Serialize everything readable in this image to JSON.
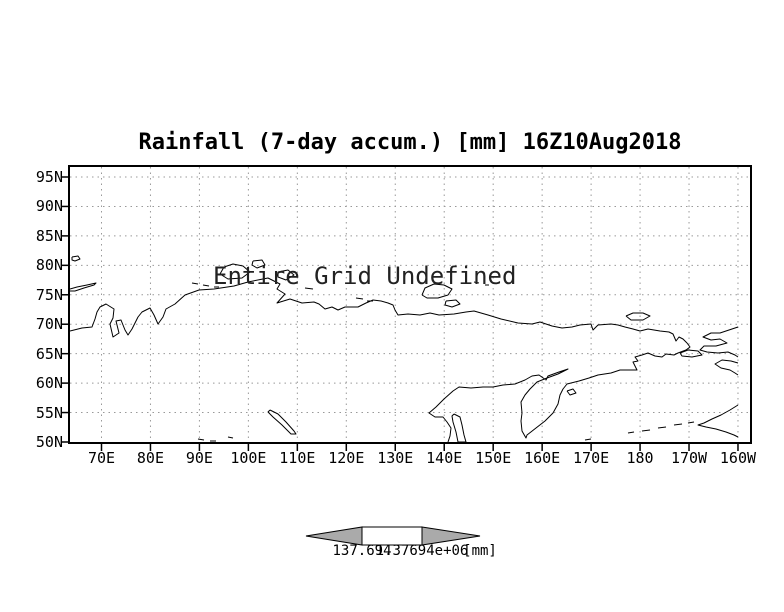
{
  "title": "Rainfall (7-day accum.) [mm] 16Z10Aug2018",
  "annotation": "Entire Grid Undefined",
  "chart_data": {
    "type": "map",
    "title": "Rainfall (7-day accum.) [mm] 16Z10Aug2018",
    "subtitle": "",
    "status_annotation": "Entire Grid Undefined",
    "grid": "dotted",
    "legend_position": "bottom-center colorbar",
    "x_axis": {
      "ticks": [
        "70E",
        "80E",
        "90E",
        "100E",
        "110E",
        "120E",
        "130E",
        "140E",
        "150E",
        "160E",
        "170E",
        "180",
        "170W",
        "160W"
      ]
    },
    "y_axis": {
      "ticks": [
        "95N",
        "90N",
        "85N",
        "80N",
        "75N",
        "70N",
        "65N",
        "60N",
        "55N",
        "50N"
      ]
    },
    "series": [],
    "colorbar": {
      "left_label": "137.694",
      "right_label": "1.37694e+06",
      "units_label": "[mm]",
      "arrow_fill": "#aaaaaa",
      "box_fill": "#ffffff"
    },
    "colors": {
      "coastline": "#000000",
      "gridline": "#999999",
      "frame": "#000000",
      "background": "#ffffff"
    }
  },
  "map": {
    "mainland": [
      [
        0,
        164
      ],
      [
        12,
        161
      ],
      [
        22,
        160
      ],
      [
        25,
        152
      ],
      [
        27,
        145
      ],
      [
        30,
        140
      ],
      [
        36,
        137
      ],
      [
        44,
        142
      ],
      [
        43,
        151
      ],
      [
        40,
        157
      ],
      [
        43,
        170
      ],
      [
        49,
        166
      ],
      [
        46,
        154
      ],
      [
        51,
        153
      ],
      [
        55,
        163
      ],
      [
        58,
        168
      ],
      [
        62,
        162
      ],
      [
        68,
        150
      ],
      [
        72,
        145
      ],
      [
        76,
        143
      ],
      [
        80,
        141
      ],
      [
        84,
        148
      ],
      [
        88,
        157
      ],
      [
        93,
        150
      ],
      [
        96,
        142
      ],
      [
        105,
        137
      ],
      [
        115,
        128
      ],
      [
        129,
        123
      ],
      [
        144,
        122
      ],
      [
        164,
        119
      ],
      [
        178,
        115
      ],
      [
        198,
        111
      ],
      [
        210,
        117
      ],
      [
        207,
        122
      ],
      [
        215,
        127
      ],
      [
        207,
        136
      ],
      [
        220,
        132
      ],
      [
        232,
        136
      ],
      [
        244,
        135
      ],
      [
        249,
        137
      ],
      [
        255,
        142
      ],
      [
        262,
        140
      ],
      [
        268,
        143
      ],
      [
        275,
        140
      ],
      [
        288,
        140
      ],
      [
        296,
        136
      ],
      [
        303,
        133
      ],
      [
        311,
        134
      ],
      [
        318,
        136
      ],
      [
        323,
        138
      ],
      [
        325,
        143
      ],
      [
        328,
        148
      ],
      [
        338,
        147
      ],
      [
        350,
        148
      ],
      [
        360,
        146
      ],
      [
        369,
        148
      ],
      [
        384,
        147
      ],
      [
        396,
        145
      ],
      [
        404,
        144
      ],
      [
        418,
        148
      ],
      [
        431,
        152
      ],
      [
        448,
        156
      ],
      [
        462,
        157
      ],
      [
        470,
        155
      ],
      [
        482,
        159
      ],
      [
        492,
        161
      ],
      [
        502,
        160
      ],
      [
        510,
        158
      ],
      [
        521,
        157
      ],
      [
        523,
        163
      ],
      [
        528,
        158
      ],
      [
        541,
        157
      ],
      [
        548,
        158
      ],
      [
        555,
        160
      ],
      [
        563,
        162
      ],
      [
        570,
        164
      ],
      [
        578,
        162
      ],
      [
        590,
        164
      ],
      [
        599,
        165
      ],
      [
        603,
        167
      ],
      [
        606,
        174
      ],
      [
        609,
        170
      ],
      [
        613,
        172
      ],
      [
        617,
        176
      ],
      [
        620,
        180
      ],
      [
        616,
        183
      ],
      [
        608,
        186
      ],
      [
        604,
        188
      ],
      [
        596,
        187
      ],
      [
        592,
        190
      ],
      [
        585,
        189
      ],
      [
        578,
        186
      ],
      [
        572,
        188
      ],
      [
        565,
        190
      ],
      [
        568,
        194
      ],
      [
        563,
        195
      ],
      [
        567,
        203
      ],
      [
        550,
        203
      ],
      [
        541,
        206
      ],
      [
        528,
        208
      ],
      [
        519,
        211
      ],
      [
        509,
        214
      ],
      [
        497,
        217
      ],
      [
        493,
        222
      ],
      [
        490,
        228
      ],
      [
        488,
        237
      ],
      [
        483,
        246
      ],
      [
        475,
        254
      ],
      [
        466,
        261
      ],
      [
        457,
        268
      ],
      [
        456,
        271
      ],
      [
        452,
        264
      ],
      [
        451,
        254
      ],
      [
        452,
        246
      ],
      [
        451,
        235
      ],
      [
        455,
        228
      ],
      [
        460,
        222
      ],
      [
        467,
        215
      ],
      [
        477,
        211
      ],
      [
        488,
        207
      ],
      [
        498,
        202
      ],
      [
        489,
        205
      ],
      [
        478,
        209
      ],
      [
        476,
        213
      ],
      [
        469,
        208
      ],
      [
        462,
        209
      ],
      [
        455,
        213
      ],
      [
        445,
        217
      ],
      [
        433,
        218
      ],
      [
        423,
        220
      ],
      [
        413,
        220
      ],
      [
        401,
        221
      ],
      [
        389,
        220
      ],
      [
        383,
        224
      ],
      [
        374,
        232
      ],
      [
        366,
        240
      ],
      [
        359,
        246
      ],
      [
        365,
        250
      ],
      [
        373,
        250
      ],
      [
        377,
        255
      ],
      [
        381,
        261
      ],
      [
        380,
        269
      ],
      [
        378,
        275
      ]
    ],
    "islands": [
      [
        [
          0,
          122
        ],
        [
          7,
          120
        ],
        [
          17,
          118
        ],
        [
          26,
          116
        ],
        [
          24,
          118
        ],
        [
          14,
          121
        ],
        [
          5,
          124
        ],
        [
          0,
          124
        ]
      ],
      [
        [
          2,
          90
        ],
        [
          8,
          89
        ],
        [
          10,
          92
        ],
        [
          5,
          94
        ],
        [
          2,
          93
        ],
        [
          2,
          90
        ]
      ],
      [
        [
          150,
          107
        ],
        [
          154,
          100
        ],
        [
          163,
          97
        ],
        [
          173,
          99
        ],
        [
          180,
          105
        ],
        [
          172,
          111
        ],
        [
          158,
          112
        ],
        [
          150,
          107
        ]
      ],
      [
        [
          183,
          94
        ],
        [
          192,
          93
        ],
        [
          195,
          98
        ],
        [
          187,
          101
        ],
        [
          182,
          98
        ],
        [
          183,
          94
        ]
      ],
      [
        [
          208,
          105
        ],
        [
          218,
          103
        ],
        [
          224,
          108
        ],
        [
          216,
          113
        ],
        [
          208,
          110
        ],
        [
          208,
          105
        ]
      ],
      [
        [
          122,
          116
        ],
        [
          128,
          117
        ]
      ],
      [
        [
          133,
          118
        ],
        [
          139,
          119
        ]
      ],
      [
        [
          144,
          120
        ],
        [
          149,
          120
        ]
      ],
      [
        [
          235,
          121
        ],
        [
          243,
          122
        ]
      ],
      [
        [
          286,
          131
        ],
        [
          293,
          132
        ]
      ],
      [
        [
          297,
          134
        ],
        [
          303,
          134
        ]
      ],
      [
        [
          352,
          128
        ],
        [
          355,
          121
        ],
        [
          364,
          117
        ],
        [
          374,
          118
        ],
        [
          382,
          122
        ],
        [
          378,
          128
        ],
        [
          368,
          131
        ],
        [
          357,
          131
        ],
        [
          352,
          128
        ]
      ],
      [
        [
          376,
          134
        ],
        [
          386,
          133
        ],
        [
          390,
          137
        ],
        [
          382,
          140
        ],
        [
          375,
          138
        ],
        [
          376,
          134
        ]
      ],
      [
        [
          404,
          115
        ],
        [
          409,
          116
        ]
      ],
      [
        [
          415,
          118
        ],
        [
          419,
          118
        ]
      ],
      [
        [
          556,
          149
        ],
        [
          563,
          146
        ],
        [
          573,
          146
        ],
        [
          580,
          149
        ],
        [
          573,
          153
        ],
        [
          561,
          153
        ],
        [
          556,
          149
        ]
      ],
      [
        [
          610,
          186
        ],
        [
          618,
          183
        ],
        [
          628,
          184
        ],
        [
          632,
          188
        ],
        [
          622,
          190
        ],
        [
          612,
          189
        ],
        [
          610,
          186
        ]
      ],
      [
        [
          497,
          224
        ],
        [
          503,
          222
        ],
        [
          506,
          226
        ],
        [
          500,
          228
        ],
        [
          497,
          224
        ]
      ],
      [
        [
          558,
          266
        ],
        [
          564,
          265
        ]
      ],
      [
        [
          572,
          264
        ],
        [
          580,
          263
        ]
      ],
      [
        [
          588,
          261
        ],
        [
          596,
          260
        ]
      ],
      [
        [
          604,
          258
        ],
        [
          612,
          257
        ]
      ],
      [
        [
          618,
          256
        ],
        [
          624,
          255
        ]
      ],
      [
        [
          515,
          273
        ],
        [
          521,
          272
        ]
      ],
      [
        [
          200,
          243
        ],
        [
          208,
          247
        ],
        [
          216,
          255
        ],
        [
          224,
          264
        ],
        [
          226,
          267
        ],
        [
          221,
          267
        ],
        [
          212,
          258
        ],
        [
          203,
          250
        ],
        [
          198,
          245
        ],
        [
          200,
          243
        ]
      ],
      [
        [
          384,
          247
        ],
        [
          390,
          250
        ],
        [
          392,
          258
        ],
        [
          394,
          268
        ],
        [
          396,
          275
        ],
        [
          388,
          275
        ],
        [
          386,
          265
        ],
        [
          383,
          255
        ],
        [
          382,
          249
        ],
        [
          384,
          247
        ]
      ],
      [
        [
          128,
          272
        ],
        [
          134,
          273
        ]
      ],
      [
        [
          140,
          274
        ],
        [
          146,
          274
        ]
      ],
      [
        [
          158,
          270
        ],
        [
          163,
          271
        ]
      ],
      [
        [
          668,
          160
        ],
        [
          659,
          163
        ],
        [
          650,
          166
        ],
        [
          641,
          166
        ],
        [
          633,
          170
        ],
        [
          641,
          173
        ],
        [
          650,
          172
        ],
        [
          657,
          176
        ],
        [
          646,
          179
        ],
        [
          634,
          179
        ],
        [
          630,
          183
        ],
        [
          637,
          185
        ],
        [
          648,
          186
        ],
        [
          658,
          185
        ],
        [
          665,
          188
        ],
        [
          668,
          190
        ]
      ],
      [
        [
          668,
          196
        ],
        [
          661,
          194
        ],
        [
          652,
          193
        ],
        [
          645,
          197
        ],
        [
          651,
          201
        ],
        [
          660,
          203
        ],
        [
          665,
          206
        ],
        [
          668,
          208
        ]
      ],
      [
        [
          668,
          238
        ],
        [
          660,
          243
        ],
        [
          651,
          248
        ],
        [
          642,
          252
        ],
        [
          634,
          256
        ],
        [
          628,
          258
        ],
        [
          636,
          260
        ],
        [
          646,
          262
        ],
        [
          656,
          265
        ],
        [
          664,
          268
        ],
        [
          668,
          270
        ]
      ]
    ]
  }
}
